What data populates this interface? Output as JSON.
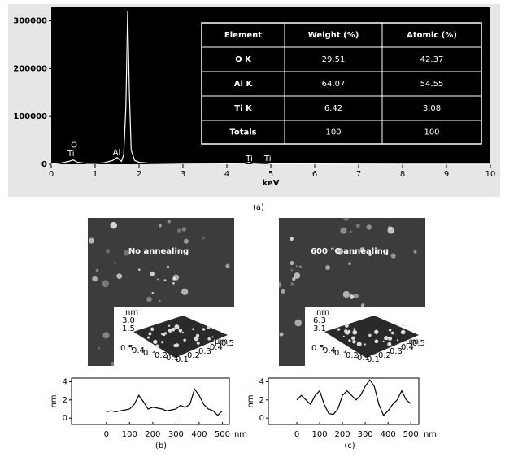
{
  "chart_data": [
    {
      "type": "line",
      "xlabel": "keV",
      "background": "#000000",
      "color": "#ffffff",
      "x": [
        0,
        0.2,
        0.3,
        0.4,
        0.5,
        0.6,
        0.8,
        1.0,
        1.2,
        1.4,
        1.5,
        1.6,
        1.65,
        1.7,
        1.74,
        1.78,
        1.82,
        1.9,
        2.0,
        2.2,
        2.5,
        3,
        3.5,
        4,
        4.4,
        4.5,
        4.6,
        4.9,
        5,
        5.5,
        6,
        7,
        8,
        9,
        10
      ],
      "values": [
        0,
        2000,
        4000,
        6000,
        9000,
        4000,
        2000,
        2000,
        3000,
        8000,
        14000,
        6000,
        20000,
        120000,
        320000,
        150000,
        30000,
        8000,
        4000,
        2500,
        2000,
        1500,
        1200,
        1000,
        1200,
        4000,
        1200,
        2500,
        1000,
        800,
        600,
        500,
        400,
        300,
        200
      ],
      "xlim": [
        0,
        10
      ],
      "ylim": [
        0,
        330000
      ],
      "xticks": [
        0,
        1,
        2,
        3,
        4,
        5,
        6,
        7,
        8,
        9,
        10
      ],
      "yticks": [
        0,
        100000,
        200000,
        300000
      ],
      "annotations": [
        {
          "label": "O",
          "x": 0.52,
          "y": 40000
        },
        {
          "label": "Ti",
          "x": 0.45,
          "y": 22000
        },
        {
          "label": "Al",
          "x": 1.49,
          "y": 25000
        },
        {
          "label": "Ti",
          "x": 4.51,
          "y": 12000
        },
        {
          "label": "Ti",
          "x": 4.93,
          "y": 12000
        }
      ]
    },
    {
      "type": "line",
      "xlabel": "nm",
      "ylabel": "nm",
      "color": "#000000",
      "x": [
        0,
        20,
        40,
        60,
        80,
        100,
        120,
        140,
        160,
        180,
        200,
        220,
        240,
        260,
        280,
        300,
        320,
        340,
        360,
        380,
        400,
        420,
        440,
        460,
        480,
        500
      ],
      "values": [
        0.7,
        0.8,
        0.7,
        0.8,
        0.9,
        1.0,
        1.5,
        2.5,
        1.8,
        1.0,
        1.2,
        1.1,
        1.0,
        0.8,
        0.9,
        1.0,
        1.4,
        1.2,
        1.5,
        3.2,
        2.5,
        1.5,
        1.0,
        0.8,
        0.3,
        0.8
      ],
      "xlim": [
        -150,
        530
      ],
      "ylim": [
        -0.7,
        4.4
      ],
      "xticks": [
        0,
        100,
        200,
        300,
        400,
        500
      ],
      "yticks": [
        0,
        2,
        4
      ]
    },
    {
      "type": "line",
      "xlabel": "nm",
      "ylabel": "nm",
      "color": "#000000",
      "x": [
        0,
        20,
        40,
        60,
        80,
        100,
        120,
        140,
        160,
        180,
        200,
        220,
        240,
        260,
        280,
        300,
        320,
        340,
        360,
        380,
        400,
        420,
        440,
        460,
        480,
        500
      ],
      "values": [
        2.0,
        2.5,
        2.0,
        1.5,
        2.5,
        3.0,
        1.5,
        0.5,
        0.4,
        1.0,
        2.5,
        3.0,
        2.5,
        2.0,
        2.5,
        3.5,
        4.2,
        3.5,
        1.5,
        0.3,
        0.8,
        1.5,
        2.0,
        3.0,
        2.0,
        1.6
      ],
      "xlim": [
        -125,
        535
      ],
      "ylim": [
        -0.7,
        4.4
      ],
      "xticks": [
        0,
        100,
        200,
        300,
        400,
        500
      ],
      "yticks": [
        0,
        2,
        4
      ]
    }
  ],
  "table": {
    "header": [
      "Element",
      "Weight (%)",
      "Atomic (%)"
    ],
    "rows": [
      [
        "O K",
        "29.51",
        "42.37"
      ],
      [
        "Al K",
        "64.07",
        "54.55"
      ],
      [
        "Ti K",
        "6.42",
        "3.08"
      ],
      [
        "Totals",
        "100",
        "100"
      ]
    ]
  },
  "afm": [
    {
      "title": "No annealing",
      "z_unit": "nm",
      "z_ticks": [
        "3.0",
        "1.5"
      ],
      "left_ticks": [
        "0.5",
        "0.4",
        "0.3",
        "0.2",
        "0.1"
      ],
      "right_ticks": [
        "0.1",
        "0.2",
        "0.3",
        "0.4",
        "0.5"
      ],
      "xy_unit": "μm"
    },
    {
      "title": "600 °C annealing",
      "z_unit": "nm",
      "z_ticks": [
        "6.3",
        "3.1"
      ],
      "left_ticks": [
        "0.5",
        "0.4",
        "0.3",
        "0.2",
        "0.1"
      ],
      "right_ticks": [
        "0.1",
        "0.2",
        "0.3",
        "0.4",
        "0.5"
      ],
      "xy_unit": "μm"
    }
  ],
  "panel_labels": [
    "(a)",
    "(b)",
    "(c)"
  ]
}
